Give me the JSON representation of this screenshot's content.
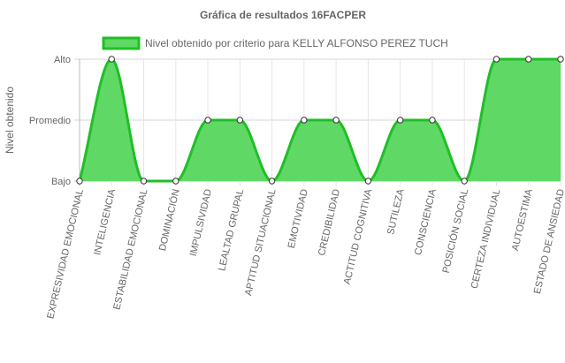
{
  "chart_data": {
    "type": "area",
    "title": "Gráfica de resultados 16FACPER",
    "ylabel": "Nivel obtenido",
    "xlabel": "",
    "y_levels": [
      "Bajo",
      "Promedio",
      "Alto"
    ],
    "ylim": [
      0,
      2
    ],
    "categories": [
      "EXPRESIVIDAD EMOCIONAL",
      "INTELIGENCIA",
      "ESTABILIDAD EMOCIONAL",
      "DOMINACIÓN",
      "IMPULSIVIDAD",
      "LEALTAD GRUPAL",
      "APTITUD SITUACIONAL",
      "EMOTIVIDAD",
      "CREDIBILIDAD",
      "ACTITUD COGNITIVA",
      "SUTILEZA",
      "CONSCIENCIA",
      "POSICIÓN SOCIAL",
      "CERTEZA INDIVIDUAL",
      "AUTOESTIMA",
      "ESTADO DE ANSIEDAD"
    ],
    "series": [
      {
        "name": "Nivel obtenido por criterio para KELLY ALFONSO PEREZ TUCH",
        "values": [
          0,
          2,
          0,
          0,
          1,
          1,
          0,
          1,
          1,
          0,
          1,
          1,
          0,
          2,
          2,
          2
        ],
        "fill_color": "#5fd865",
        "line_color": "#1fbf26"
      }
    ],
    "grid": true,
    "legend_position": "top"
  }
}
